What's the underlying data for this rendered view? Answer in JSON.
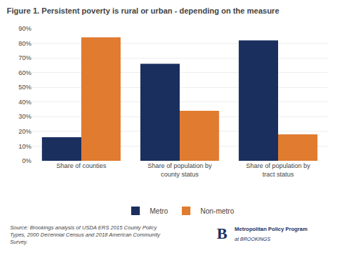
{
  "chart_data": {
    "type": "bar",
    "title": "Figure 1. Persistent poverty is rural or urban - depending on the measure",
    "categories": [
      "Share of counties",
      "Share of population by\ncounty status",
      "Share of population by\ntract status"
    ],
    "series": [
      {
        "name": "Metro",
        "color": "#1a2f5e",
        "values": [
          16,
          66,
          82
        ]
      },
      {
        "name": "Non-metro",
        "color": "#e07b30",
        "values": [
          84,
          34,
          18
        ]
      }
    ],
    "ylim": [
      0,
      90
    ],
    "yticks": [
      {
        "value": 0,
        "label": "0%"
      },
      {
        "value": 10,
        "label": "10%"
      },
      {
        "value": 20,
        "label": "20%"
      },
      {
        "value": 30,
        "label": "30%"
      },
      {
        "value": 40,
        "label": "40%"
      },
      {
        "value": 50,
        "label": "50%"
      },
      {
        "value": 60,
        "label": "60%"
      },
      {
        "value": 70,
        "label": "70%"
      },
      {
        "value": 80,
        "label": "80%"
      },
      {
        "value": 90,
        "label": "90%"
      }
    ],
    "grid": true,
    "legend": "bottom",
    "annotations": [
      "Source: Brookings analysis of USDA ERS 2015 County Policy\nTypes, 2000 Decennial Census and 2018 American Community\nSurvey.",
      "B",
      "Metropolitan Policy Program",
      "at BROOKINGS"
    ]
  }
}
